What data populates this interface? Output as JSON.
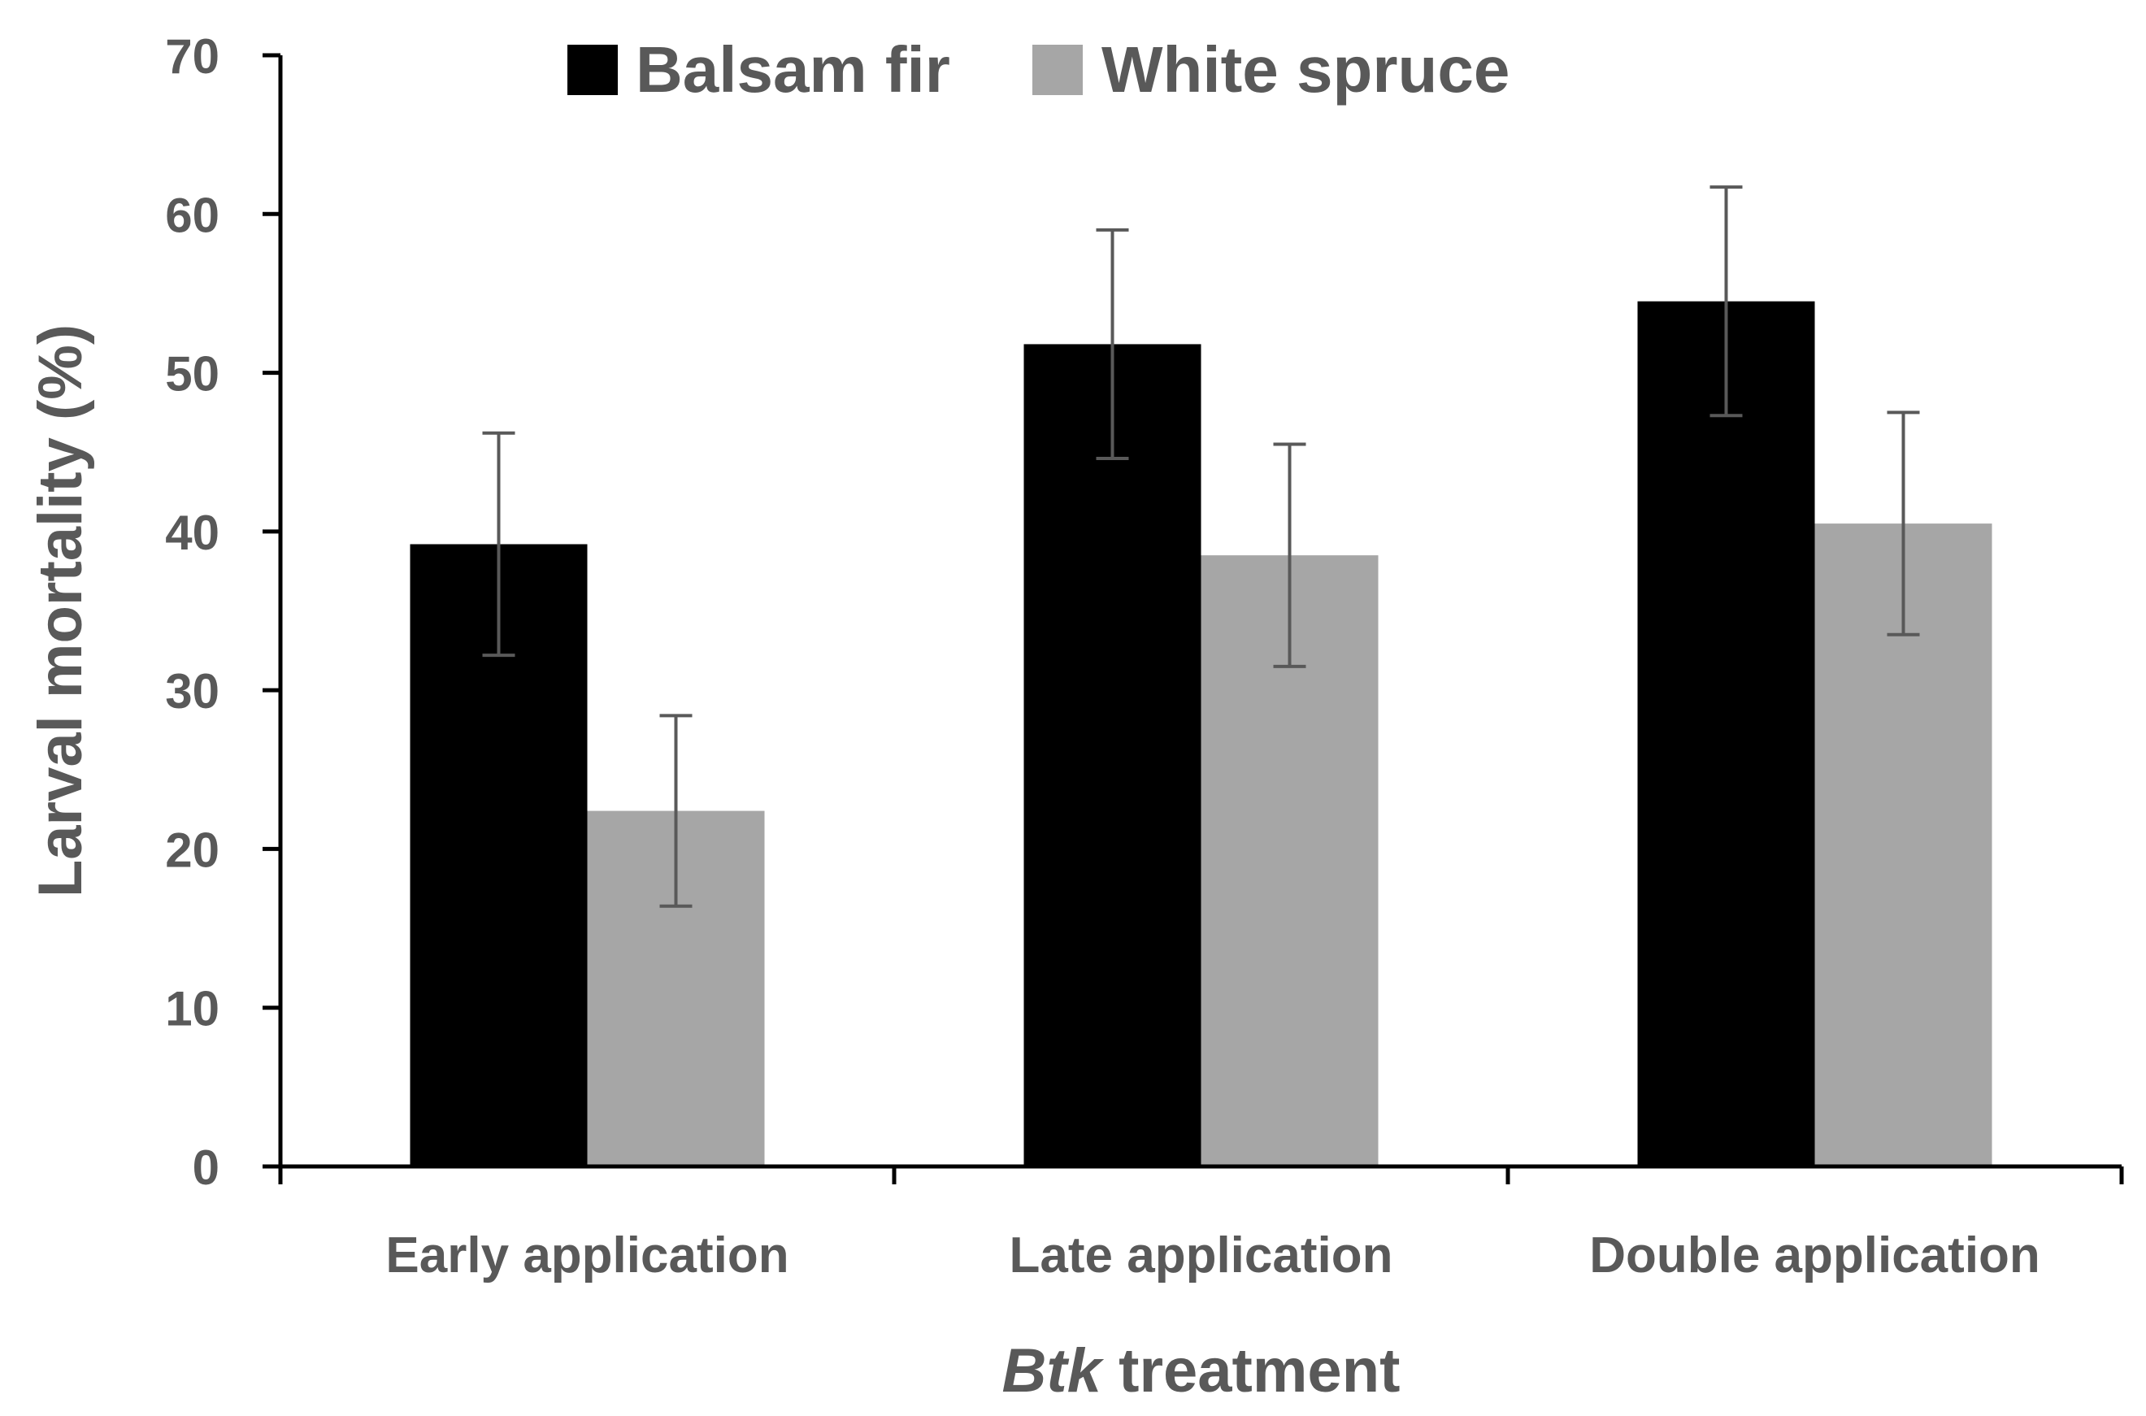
{
  "chart_data": {
    "type": "bar",
    "title": "",
    "xlabel_italic": "Btk",
    "xlabel_rest": " treatment",
    "ylabel": "Larval mortality (%)",
    "ylim": [
      0,
      70
    ],
    "yticks": [
      "0",
      "10",
      "20",
      "30",
      "40",
      "50",
      "60",
      "70"
    ],
    "categories": [
      "Early application",
      "Late application",
      "Double application"
    ],
    "series": [
      {
        "name": "Balsam fir",
        "color": "#000000",
        "values": [
          39.2,
          51.8,
          54.5
        ],
        "errors": [
          7.0,
          7.2,
          7.2
        ]
      },
      {
        "name": "White spruce",
        "color": "#a6a6a6",
        "values": [
          22.4,
          38.5,
          40.5
        ],
        "errors": [
          6.0,
          7.0,
          7.0
        ]
      }
    ],
    "legend_position": "top-center",
    "grid": false
  }
}
